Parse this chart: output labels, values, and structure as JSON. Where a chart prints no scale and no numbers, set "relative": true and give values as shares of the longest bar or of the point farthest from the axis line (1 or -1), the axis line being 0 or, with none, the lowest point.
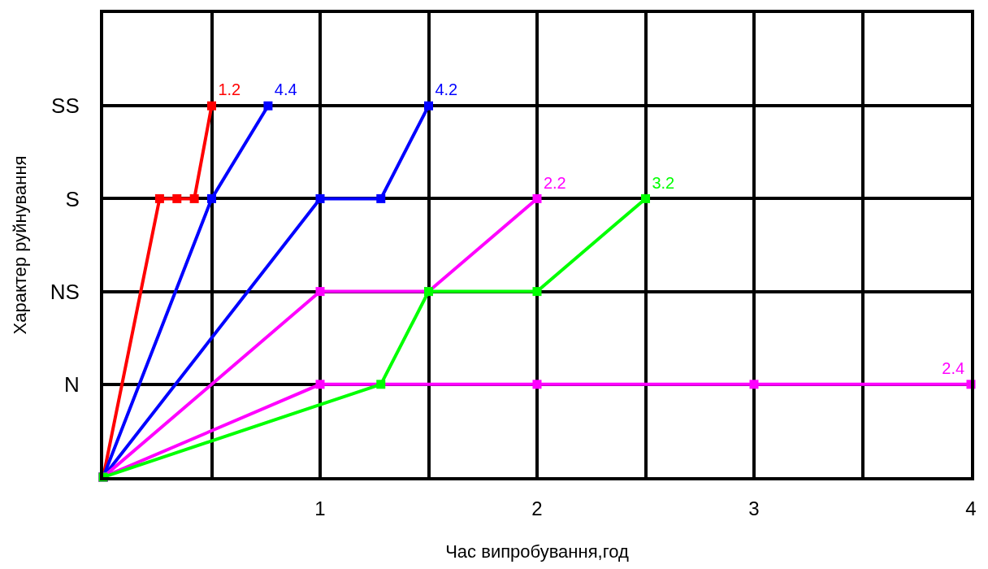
{
  "chart_data": {
    "type": "line",
    "xlabel": "Час випробування,год",
    "ylabel": "Характер руйнування",
    "xlim": [
      0,
      4
    ],
    "relative": true,
    "y_categories": [
      "SS",
      "S",
      "NS",
      "N"
    ],
    "xticks": [
      {
        "value": 0,
        "label": null
      },
      {
        "value": 0.5,
        "label": null
      },
      1,
      {
        "value": 1.5,
        "label": null
      },
      2,
      {
        "value": 2.5,
        "label": null
      },
      3,
      {
        "value": 3.5,
        "label": null
      },
      4
    ],
    "grid": true,
    "legend": false,
    "marker": "square",
    "line_style": "solid",
    "series": [
      {
        "name": "1.2",
        "color": "#ff0000",
        "x": [
          0,
          0.26,
          0.34,
          0.42,
          0.5
        ],
        "values": [
          0,
          0.75,
          0.75,
          0.75,
          1
        ]
      },
      {
        "name": "4.4",
        "color": "#0000ff",
        "x": [
          0,
          0.5,
          0.76
        ],
        "values": [
          0,
          0.75,
          1
        ]
      },
      {
        "name": "4.2",
        "color": "#0000ff",
        "x": [
          0,
          1,
          1.28,
          1.5
        ],
        "values": [
          0,
          0.75,
          0.75,
          1
        ]
      },
      {
        "name": "2.2",
        "color": "#ff00ff",
        "x": [
          0,
          1,
          1.5,
          2
        ],
        "values": [
          0,
          0.5,
          0.5,
          0.75
        ]
      },
      {
        "name": "2.4",
        "color": "#ff00ff",
        "x": [
          0,
          1,
          2,
          3,
          4
        ],
        "values": [
          0,
          0.25,
          0.25,
          0.25,
          0.25
        ]
      },
      {
        "name": "3.2",
        "color": "#00ff00",
        "x": [
          0,
          1.28,
          1.5,
          2,
          2.5
        ],
        "values": [
          0,
          0.25,
          0.5,
          0.5,
          0.75
        ]
      }
    ]
  }
}
